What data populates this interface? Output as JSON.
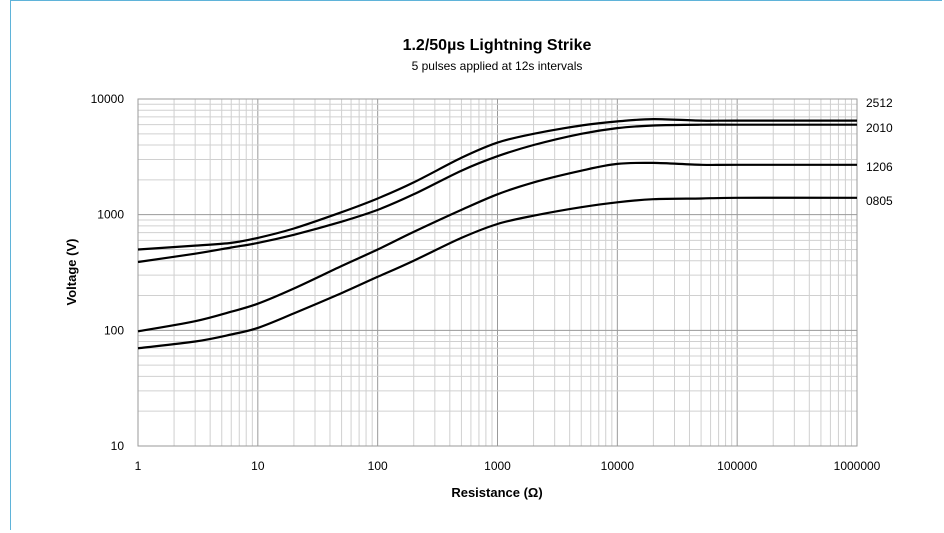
{
  "chart_data": {
    "type": "line",
    "title": "1.2/50µs Lightning Strike",
    "subtitle": "5 pulses applied at 12s intervals",
    "xlabel": "Resistance (Ω)",
    "ylabel": "Voltage (V)",
    "x_scale": "log",
    "y_scale": "log",
    "xlim": [
      1,
      1000000
    ],
    "ylim": [
      10,
      10000
    ],
    "x_ticks": [
      "1",
      "10",
      "100",
      "1000",
      "10000",
      "100000",
      "1000000"
    ],
    "y_ticks": [
      "10",
      "100",
      "1000",
      "10000"
    ],
    "grid": true,
    "line_color": "#000000",
    "series": [
      {
        "name": "2512",
        "points": [
          [
            1,
            500
          ],
          [
            3,
            540
          ],
          [
            6,
            570
          ],
          [
            10,
            630
          ],
          [
            20,
            760
          ],
          [
            50,
            1050
          ],
          [
            100,
            1380
          ],
          [
            200,
            1900
          ],
          [
            500,
            3100
          ],
          [
            1000,
            4200
          ],
          [
            2000,
            5000
          ],
          [
            5000,
            5900
          ],
          [
            10000,
            6400
          ],
          [
            20000,
            6700
          ],
          [
            50000,
            6500
          ],
          [
            100000,
            6500
          ],
          [
            1000000,
            6500
          ]
        ]
      },
      {
        "name": "2010",
        "points": [
          [
            1,
            390
          ],
          [
            3,
            460
          ],
          [
            6,
            520
          ],
          [
            10,
            570
          ],
          [
            20,
            670
          ],
          [
            50,
            870
          ],
          [
            100,
            1100
          ],
          [
            200,
            1500
          ],
          [
            500,
            2400
          ],
          [
            1000,
            3200
          ],
          [
            2000,
            4000
          ],
          [
            5000,
            5000
          ],
          [
            10000,
            5600
          ],
          [
            20000,
            5900
          ],
          [
            50000,
            6000
          ],
          [
            100000,
            6000
          ],
          [
            1000000,
            6000
          ]
        ]
      },
      {
        "name": "1206",
        "points": [
          [
            1,
            98
          ],
          [
            3,
            120
          ],
          [
            6,
            145
          ],
          [
            10,
            170
          ],
          [
            20,
            230
          ],
          [
            50,
            360
          ],
          [
            100,
            500
          ],
          [
            200,
            710
          ],
          [
            500,
            1100
          ],
          [
            1000,
            1500
          ],
          [
            2000,
            1900
          ],
          [
            5000,
            2400
          ],
          [
            10000,
            2750
          ],
          [
            20000,
            2800
          ],
          [
            50000,
            2700
          ],
          [
            100000,
            2700
          ],
          [
            1000000,
            2700
          ]
        ]
      },
      {
        "name": "0805",
        "points": [
          [
            1,
            70
          ],
          [
            3,
            80
          ],
          [
            6,
            92
          ],
          [
            10,
            105
          ],
          [
            20,
            140
          ],
          [
            50,
            210
          ],
          [
            100,
            290
          ],
          [
            200,
            400
          ],
          [
            500,
            630
          ],
          [
            1000,
            830
          ],
          [
            2000,
            980
          ],
          [
            5000,
            1160
          ],
          [
            10000,
            1280
          ],
          [
            20000,
            1360
          ],
          [
            50000,
            1380
          ],
          [
            100000,
            1400
          ],
          [
            1000000,
            1400
          ]
        ]
      }
    ]
  }
}
